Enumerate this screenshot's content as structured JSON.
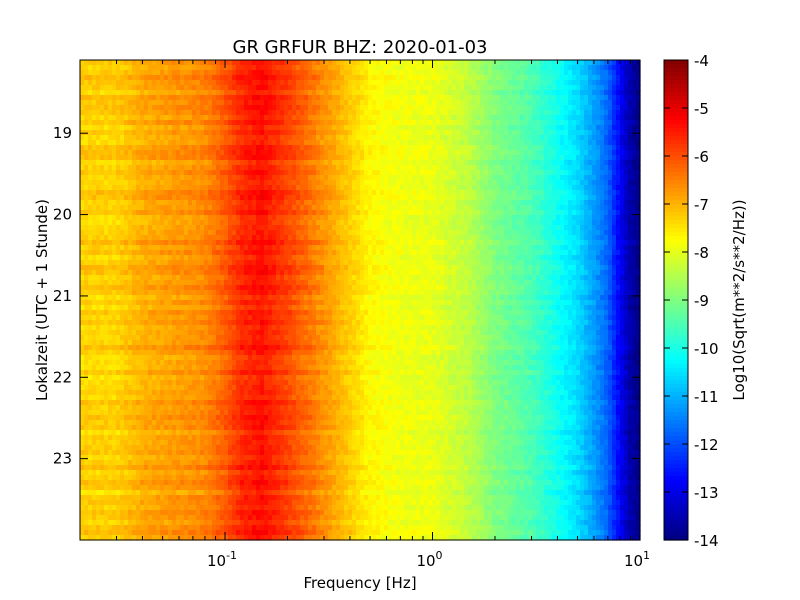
{
  "chart_data": {
    "type": "heatmap",
    "title": "GR GRFUR BHZ: 2020-01-03",
    "xlabel": "Frequency [Hz]",
    "ylabel": "Lokalzeit (UTC + 1 Stunde)",
    "xscale": "log",
    "xlim": [
      0.02,
      10
    ],
    "ylim": [
      24,
      18.1
    ],
    "y_inverted": true,
    "x_ticks": [
      {
        "value": 0.1,
        "base": "10",
        "exp": "-1"
      },
      {
        "value": 1,
        "base": "10",
        "exp": "0"
      },
      {
        "value": 10,
        "base": "10",
        "exp": "1"
      }
    ],
    "y_ticks": [
      {
        "value": 19,
        "label": "19"
      },
      {
        "value": 20,
        "label": "20"
      },
      {
        "value": 21,
        "label": "21"
      },
      {
        "value": 22,
        "label": "22"
      },
      {
        "value": 23,
        "label": "23"
      }
    ],
    "colorbar": {
      "label": "Log10(Sqrt(m**2/s**2/Hz))",
      "colormap": "jet",
      "min": -14,
      "max": -4,
      "ticks": [
        "-4",
        "-5",
        "-6",
        "-7",
        "-8",
        "-9",
        "-10",
        "-11",
        "-12",
        "-13",
        "-14"
      ]
    },
    "spectrum_profile": {
      "frequency_hz": [
        0.02,
        0.03,
        0.04,
        0.06,
        0.08,
        0.1,
        0.12,
        0.15,
        0.2,
        0.3,
        0.5,
        0.7,
        1.0,
        1.5,
        2.0,
        3.0,
        4.0,
        5.0,
        6.0,
        7.0,
        8.0,
        9.0,
        10.0
      ],
      "value_log10": [
        -7.3,
        -7.3,
        -6.95,
        -6.75,
        -6.6,
        -6.15,
        -5.65,
        -5.4,
        -5.9,
        -6.7,
        -7.7,
        -7.9,
        -7.95,
        -8.4,
        -9.0,
        -9.5,
        -10.1,
        -10.6,
        -11.2,
        -11.8,
        -12.8,
        -13.6,
        -13.9
      ]
    },
    "grid": false,
    "legend": "none"
  }
}
